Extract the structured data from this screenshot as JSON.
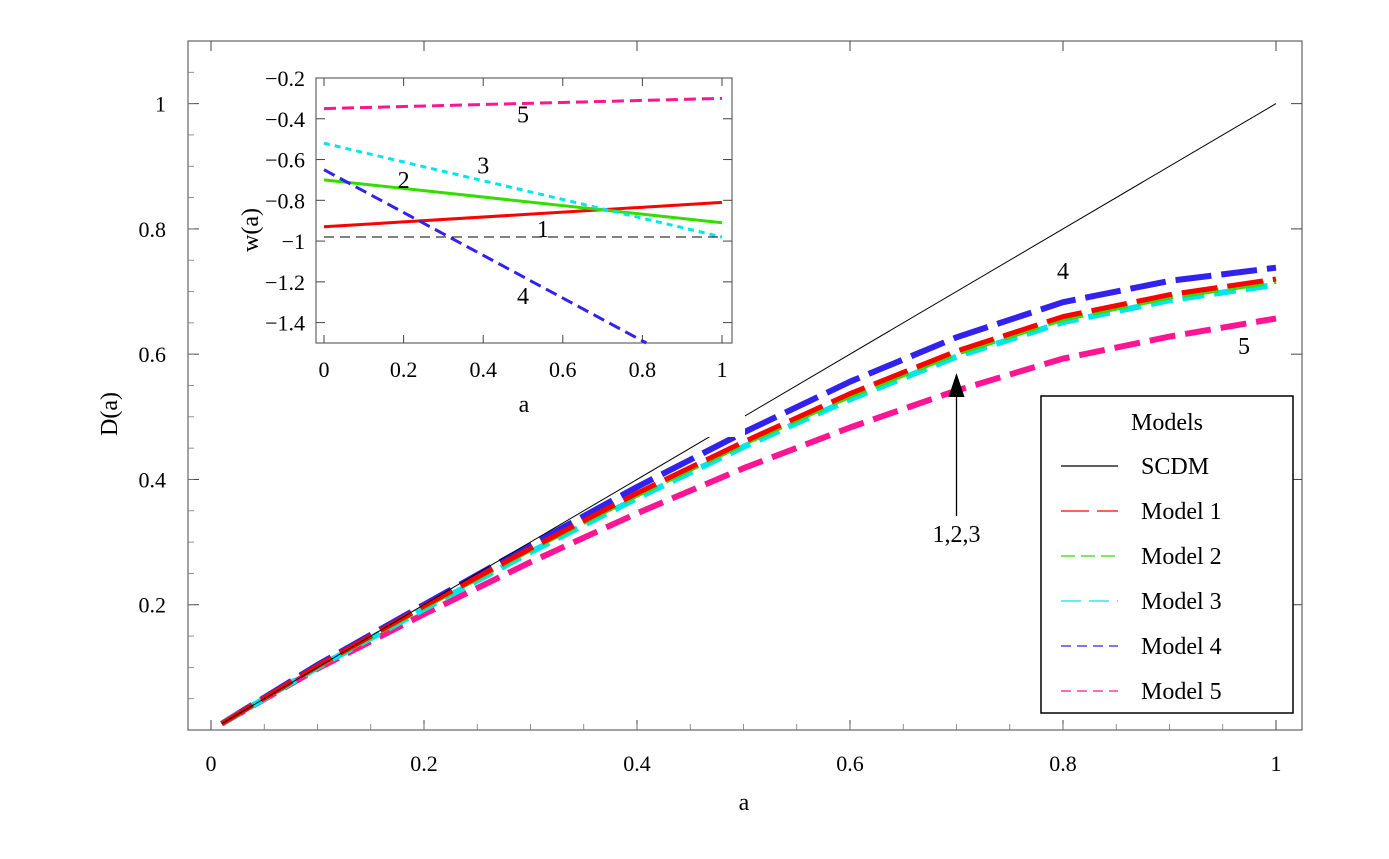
{
  "chart_data": [
    {
      "type": "line",
      "xlabel": "a",
      "ylabel": "D(a)",
      "xlim": [
        0,
        1
      ],
      "ylim": [
        0,
        1.1
      ],
      "xticks": [
        "0",
        "0.2",
        "0.4",
        "0.6",
        "0.8",
        "1"
      ],
      "yticks": [
        "0.2",
        "0.4",
        "0.6",
        "0.8",
        "1"
      ],
      "grid": false,
      "legend": {
        "title": "Models",
        "placement": "bottom-right",
        "entries": [
          "SCDM",
          "Model 1",
          "Model 2",
          "Model 3",
          "Model 4",
          "Model 5"
        ]
      },
      "series": [
        {
          "name": "SCDM",
          "color": "#000000",
          "style": "solid",
          "x": [
            0.01,
            1
          ],
          "y": [
            0.01,
            1
          ]
        },
        {
          "name": "Model 1",
          "color": "#ff0000",
          "style": "dashed",
          "x": [
            0.01,
            0.1,
            0.2,
            0.3,
            0.4,
            0.5,
            0.6,
            0.7,
            0.8,
            0.9,
            1.0
          ],
          "y": [
            0.01,
            0.102,
            0.198,
            0.29,
            0.378,
            0.46,
            0.537,
            0.605,
            0.66,
            0.695,
            0.72
          ]
        },
        {
          "name": "Model 2",
          "color": "#33dd00",
          "style": "dashed",
          "x": [
            0.01,
            0.1,
            0.2,
            0.3,
            0.4,
            0.5,
            0.6,
            0.7,
            0.8,
            0.9,
            1.0
          ],
          "y": [
            0.01,
            0.101,
            0.196,
            0.288,
            0.375,
            0.457,
            0.533,
            0.601,
            0.656,
            0.691,
            0.716
          ]
        },
        {
          "name": "Model 3",
          "color": "#00e5ee",
          "style": "dashed",
          "x": [
            0.01,
            0.1,
            0.2,
            0.3,
            0.4,
            0.5,
            0.6,
            0.7,
            0.8,
            0.9,
            1.0
          ],
          "y": [
            0.01,
            0.1,
            0.193,
            0.284,
            0.37,
            0.452,
            0.528,
            0.596,
            0.651,
            0.686,
            0.711
          ]
        },
        {
          "name": "Model 4",
          "color": "#3322ee",
          "style": "dashed",
          "x": [
            0.01,
            0.1,
            0.2,
            0.3,
            0.4,
            0.5,
            0.6,
            0.7,
            0.8,
            0.9,
            1.0
          ],
          "y": [
            0.01,
            0.104,
            0.2,
            0.295,
            0.388,
            0.475,
            0.556,
            0.627,
            0.683,
            0.717,
            0.738
          ]
        },
        {
          "name": "Model 5",
          "color": "#ff1493",
          "style": "dashed",
          "x": [
            0.01,
            0.1,
            0.2,
            0.3,
            0.4,
            0.5,
            0.6,
            0.7,
            0.8,
            0.9,
            1.0
          ],
          "y": [
            0.01,
            0.098,
            0.185,
            0.268,
            0.346,
            0.418,
            0.483,
            0.542,
            0.593,
            0.628,
            0.657
          ]
        }
      ],
      "annotations": [
        {
          "text": "4",
          "x": 0.8,
          "y": 0.72
        },
        {
          "text": "5",
          "x": 0.97,
          "y": 0.6
        },
        {
          "text": "1,2,3",
          "x": 0.7,
          "y": 0.3,
          "arrow_to": [
            0.7,
            0.57
          ]
        }
      ]
    },
    {
      "type": "line",
      "inset": true,
      "xlabel": "a",
      "ylabel": "w(a)",
      "xlim": [
        0,
        1
      ],
      "ylim": [
        -1.5,
        -0.2
      ],
      "xticks": [
        "0",
        "0.2",
        "0.4",
        "0.6",
        "0.8",
        "1"
      ],
      "yticks": [
        "−0.2",
        "−0.4",
        "−0.6",
        "−0.8",
        "−1",
        "−1.2",
        "−1.4"
      ],
      "series": [
        {
          "name": "1",
          "color": "#ff0000",
          "style": "solid",
          "x": [
            0,
            1
          ],
          "y": [
            -0.93,
            -0.81
          ]
        },
        {
          "name": "2",
          "color": "#33dd00",
          "style": "solid",
          "x": [
            0,
            1
          ],
          "y": [
            -0.7,
            -0.91
          ]
        },
        {
          "name": "3",
          "color": "#00e5ee",
          "style": "dotted",
          "x": [
            0,
            1
          ],
          "y": [
            -0.52,
            -0.98
          ]
        },
        {
          "name": "4",
          "color": "#3322ee",
          "style": "dashed",
          "x": [
            0,
            0.81
          ],
          "y": [
            -0.65,
            -1.5
          ]
        },
        {
          "name": "5",
          "color": "#ff1493",
          "style": "dashed",
          "x": [
            0,
            1
          ],
          "y": [
            -0.35,
            -0.3
          ]
        },
        {
          "name": "",
          "color": "#000000",
          "style": "thin-dashed",
          "x": [
            0,
            1
          ],
          "y": [
            -0.98,
            -0.98
          ]
        }
      ],
      "annotations": [
        {
          "text": "5",
          "x": 0.5,
          "y": -0.38
        },
        {
          "text": "3",
          "x": 0.4,
          "y": -0.63
        },
        {
          "text": "2",
          "x": 0.2,
          "y": -0.7
        },
        {
          "text": "1",
          "x": 0.55,
          "y": -0.94
        },
        {
          "text": "4",
          "x": 0.5,
          "y": -1.27
        }
      ]
    }
  ]
}
